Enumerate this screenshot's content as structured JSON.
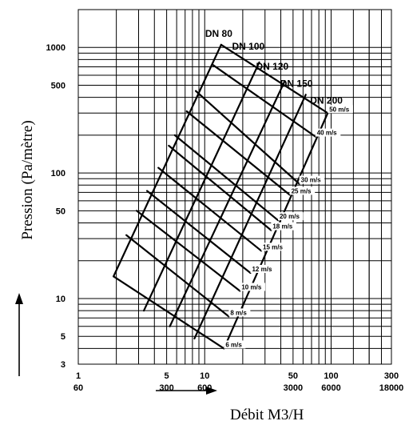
{
  "chart_data": {
    "type": "line",
    "title": "",
    "xlabel": "Débit M3/H",
    "ylabel": "Pression (Pa/mètre)",
    "x_scale": "log",
    "y_scale": "log",
    "xlim": [
      1,
      300
    ],
    "ylim": [
      3,
      2000
    ],
    "grid": true,
    "x_ticks": [
      {
        "value": 1,
        "label": "1",
        "label2": "60"
      },
      {
        "value": 5,
        "label": "5",
        "label2": "300"
      },
      {
        "value": 10,
        "label": "10",
        "label2": "600"
      },
      {
        "value": 50,
        "label": "50",
        "label2": "3000"
      },
      {
        "value": 100,
        "label": "100",
        "label2": "6000"
      },
      {
        "value": 300,
        "label": "300",
        "label2": "18000"
      }
    ],
    "y_ticks": [
      {
        "value": 1000,
        "label": "1000"
      },
      {
        "value": 500,
        "label": "500"
      },
      {
        "value": 100,
        "label": "100"
      },
      {
        "value": 50,
        "label": "50"
      },
      {
        "value": 10,
        "label": "10"
      },
      {
        "value": 5,
        "label": "5"
      },
      {
        "value": 3,
        "label": "3"
      }
    ],
    "diameter_series": [
      {
        "name": "DN 80",
        "points": [
          [
            1.9,
            15
          ],
          [
            13.5,
            1050
          ]
        ]
      },
      {
        "name": "DN 100",
        "points": [
          [
            3.3,
            8
          ],
          [
            27,
            760
          ]
        ]
      },
      {
        "name": "DN 120",
        "points": [
          [
            5.3,
            6
          ],
          [
            43,
            540
          ]
        ]
      },
      {
        "name": "DN 150",
        "points": [
          [
            8.3,
            4.8
          ],
          [
            63,
            420
          ]
        ]
      },
      {
        "name": "DN 200",
        "points": [
          [
            14.2,
            4.0
          ],
          [
            94,
            300
          ]
        ]
      }
    ],
    "velocity_series": [
      {
        "name": "50 m/s",
        "points": [
          [
            13.5,
            1050
          ],
          [
            94,
            300
          ]
        ]
      },
      {
        "name": "40 m/s",
        "points": [
          [
            11.5,
            730
          ],
          [
            75,
            195
          ]
        ]
      },
      {
        "name": "30 m/s",
        "points": [
          [
            8.5,
            450
          ],
          [
            56,
            82
          ]
        ]
      },
      {
        "name": "25 m/s",
        "points": [
          [
            7.2,
            310
          ],
          [
            47,
            67
          ]
        ]
      },
      {
        "name": "20 m/s",
        "points": [
          [
            5.8,
            200
          ],
          [
            38,
            42
          ]
        ]
      },
      {
        "name": "18 m/s",
        "points": [
          [
            5.2,
            165
          ],
          [
            33.5,
            35
          ]
        ]
      },
      {
        "name": "15 m/s",
        "points": [
          [
            4.3,
            110
          ],
          [
            28,
            24
          ]
        ]
      },
      {
        "name": "12 m/s",
        "points": [
          [
            3.5,
            72
          ],
          [
            23,
            16
          ]
        ]
      },
      {
        "name": "10 m/s",
        "points": [
          [
            2.9,
            50
          ],
          [
            19,
            11.5
          ]
        ]
      },
      {
        "name": "8 m/s",
        "points": [
          [
            2.4,
            32
          ],
          [
            15.5,
            7.2
          ]
        ]
      },
      {
        "name": "6 m/s",
        "points": [
          [
            1.9,
            15
          ],
          [
            14.2,
            4.0
          ]
        ]
      }
    ]
  }
}
